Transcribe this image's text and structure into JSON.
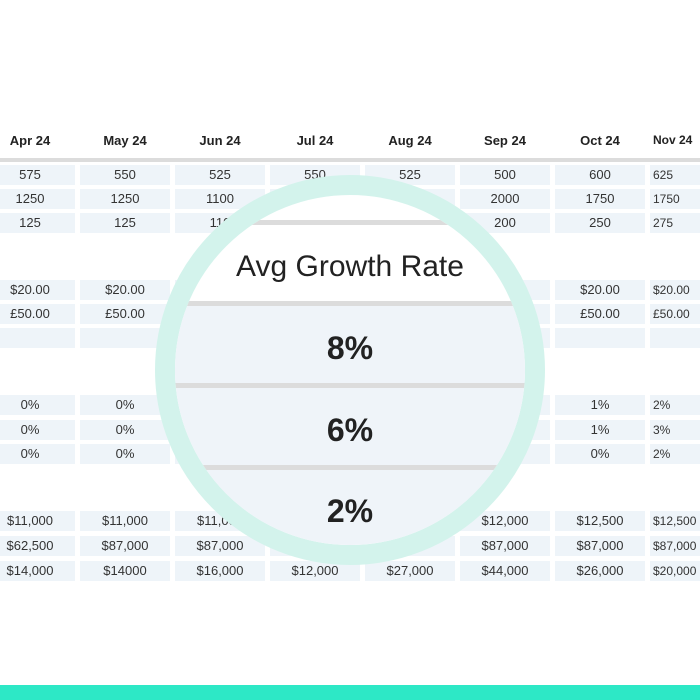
{
  "table": {
    "months": [
      "Apr 24",
      "May 24",
      "Jun 24",
      "Jul 24",
      "Aug 24",
      "Sep 24",
      "Oct 24",
      "Nov 24"
    ],
    "rows": [
      [
        "575",
        "550",
        "525",
        "550",
        "525",
        "500",
        "600",
        "625"
      ],
      [
        "1250",
        "1250",
        "1100",
        "",
        "",
        "2000",
        "1750",
        "1750"
      ],
      [
        "125",
        "125",
        "110",
        "",
        "",
        "200",
        "250",
        "275"
      ],
      [
        "$20.00",
        "$20.00",
        "",
        "",
        "",
        "",
        "$20.00",
        "$20.00"
      ],
      [
        "£50.00",
        "£50.00",
        "",
        "",
        "",
        "",
        "£50.00",
        "£50.00"
      ],
      [
        "",
        "",
        "",
        "",
        "",
        "",
        "",
        ""
      ],
      [
        "0%",
        "0%",
        "",
        "",
        "",
        "",
        "1%",
        "2%"
      ],
      [
        "0%",
        "0%",
        "",
        "",
        "",
        "",
        "1%",
        "3%"
      ],
      [
        "0%",
        "0%",
        "",
        "",
        "",
        "",
        "0%",
        "2%"
      ],
      [
        "$11,000",
        "$11,000",
        "$11,000",
        "",
        "",
        "$12,000",
        "$12,500",
        "$12,500"
      ],
      [
        "$62,500",
        "$87,000",
        "$87,000",
        "",
        "",
        "$87,000",
        "$87,000",
        "$87,000"
      ],
      [
        "$14,000",
        "$14000",
        "$16,000",
        "$12,000",
        "$27,000",
        "$44,000",
        "$26,000",
        "$20,000"
      ]
    ]
  },
  "magnifier": {
    "title": "Avg Growth Rate",
    "values": [
      "8%",
      "6%",
      "2%"
    ]
  },
  "colors": {
    "accent": "#2de8c6",
    "ring": "#d3f3ec",
    "cell": "#eef4f9"
  }
}
